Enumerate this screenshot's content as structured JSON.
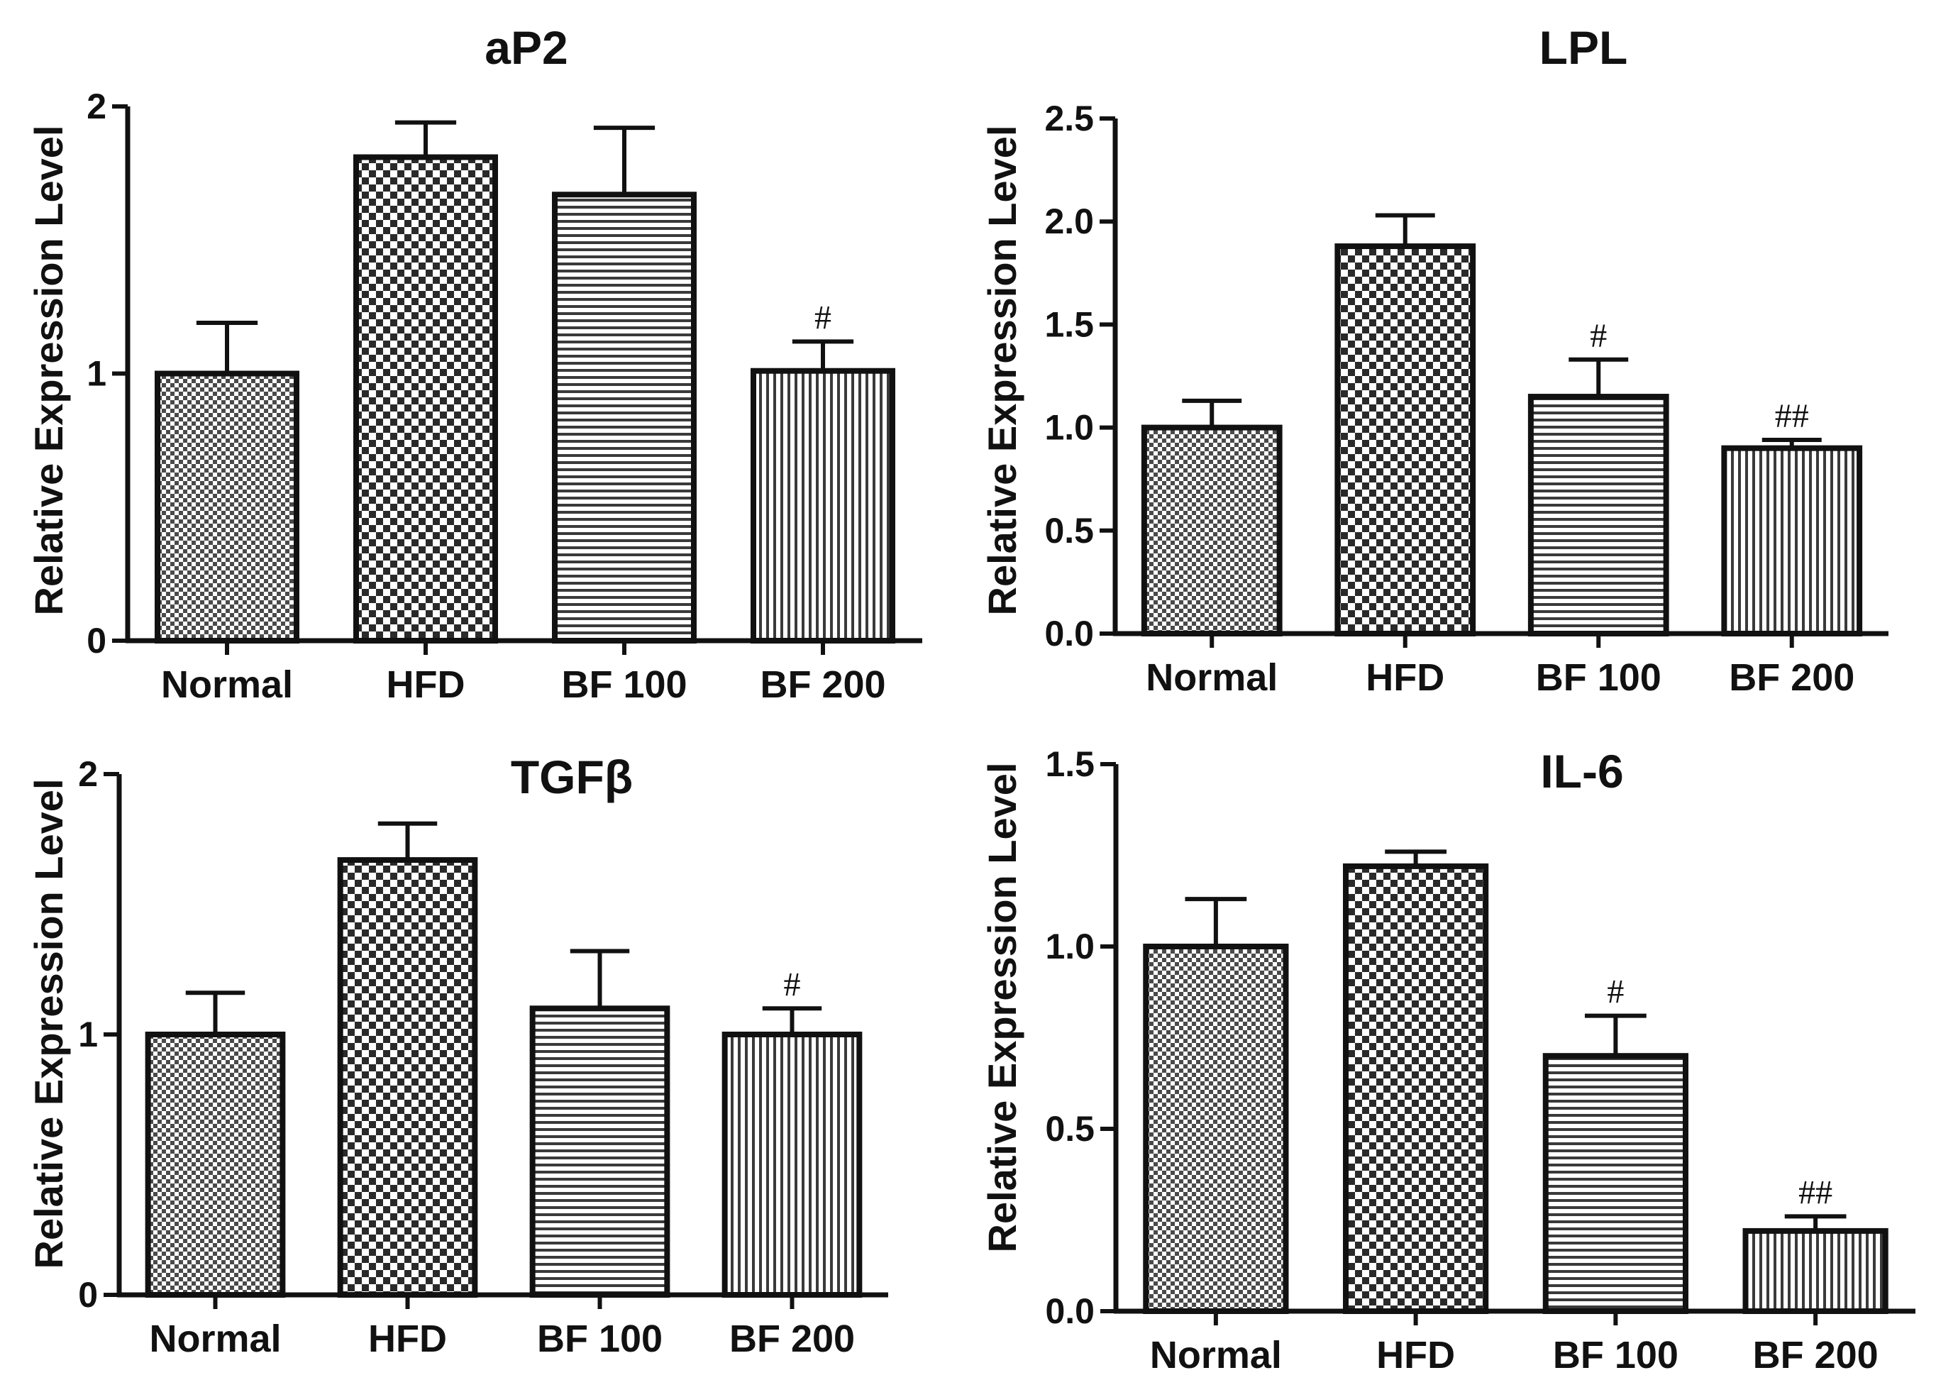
{
  "colors": {
    "ink": "#111111",
    "background": "#ffffff"
  },
  "bar_patterns": [
    "fine-checker",
    "coarse-checker",
    "horizontal-lines",
    "vertical-lines"
  ],
  "chart_data": [
    {
      "type": "bar",
      "title": "aP2",
      "ylabel": "Relative Expression Level",
      "xlabel": "",
      "ylim": [
        0,
        2
      ],
      "yticks": [
        0,
        1,
        2
      ],
      "tick_labels": [
        "0",
        "1",
        "2"
      ],
      "categories": [
        "Normal",
        "HFD",
        "BF 100",
        "BF 200"
      ],
      "values": [
        1.0,
        1.81,
        1.67,
        1.01
      ],
      "errors": [
        0.19,
        0.13,
        0.25,
        0.11
      ],
      "annotations": [
        "",
        "",
        "",
        "#"
      ]
    },
    {
      "type": "bar",
      "title": "LPL",
      "ylabel": "Relative Expression Level",
      "xlabel": "",
      "ylim": [
        0,
        2.5
      ],
      "yticks": [
        0,
        0.5,
        1.0,
        1.5,
        2.0,
        2.5
      ],
      "tick_labels": [
        "0.0",
        "0.5",
        "1.0",
        "1.5",
        "2.0",
        "2.5"
      ],
      "categories": [
        "Normal",
        "HFD",
        "BF 100",
        "BF 200"
      ],
      "values": [
        1.0,
        1.88,
        1.15,
        0.9
      ],
      "errors": [
        0.13,
        0.15,
        0.18,
        0.04
      ],
      "annotations": [
        "",
        "",
        "#",
        "##"
      ]
    },
    {
      "type": "bar",
      "title": "TGFβ",
      "ylabel": "Relative Expression Level",
      "xlabel": "",
      "ylim": [
        0,
        2
      ],
      "yticks": [
        0,
        1,
        2
      ],
      "tick_labels": [
        "0",
        "1",
        "2"
      ],
      "categories": [
        "Normal",
        "HFD",
        "BF 100",
        "BF 200"
      ],
      "values": [
        1.0,
        1.67,
        1.1,
        1.0
      ],
      "errors": [
        0.16,
        0.14,
        0.22,
        0.1
      ],
      "annotations": [
        "",
        "",
        "",
        "#"
      ]
    },
    {
      "type": "bar",
      "title": "IL-6",
      "ylabel": "Relative Expression Level",
      "xlabel": "",
      "ylim": [
        0,
        1.5
      ],
      "yticks": [
        0,
        0.5,
        1.0,
        1.5
      ],
      "tick_labels": [
        "0.0",
        "0.5",
        "1.0",
        "1.5"
      ],
      "categories": [
        "Normal",
        "HFD",
        "BF 100",
        "BF 200"
      ],
      "values": [
        1.0,
        1.22,
        0.7,
        0.22
      ],
      "errors": [
        0.13,
        0.04,
        0.11,
        0.04
      ],
      "annotations": [
        "",
        "",
        "#",
        "##"
      ]
    }
  ]
}
